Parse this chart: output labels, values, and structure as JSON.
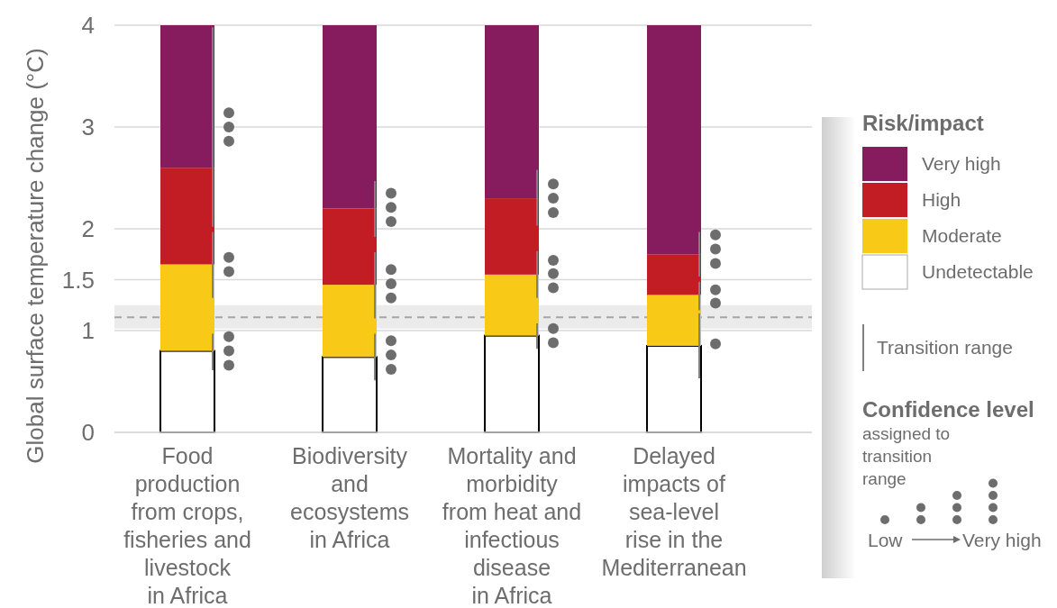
{
  "chart_data": {
    "type": "bar",
    "stacked": true,
    "ylabel": "Global surface temperature change (°C)",
    "legend_title": "Risk/impact",
    "legend": "right",
    "grid": "y",
    "categories": [
      "Food\nproduction\nfrom crops,\nfisheries and\nlivestock\nin Africa",
      "Biodiversity\nand\necosystems\nin Africa",
      "Mortality and\nmorbidity\nfrom heat and\ninfectious\ndisease\nin Africa",
      "Delayed\nimpacts of\nsea-level\nrise in the\nMediterranean"
    ],
    "ylim": [
      0,
      4
    ],
    "yticks": [
      0,
      1,
      1.5,
      2,
      3,
      4
    ],
    "series": [
      {
        "name": "Undetectable",
        "color": "#ffffff",
        "values": [
          0.8,
          0.74,
          0.95,
          0.85
        ],
        "errors": [
          [
            0.61,
            0.97
          ],
          [
            0.51,
            0.97
          ],
          [
            0.82,
            1.07
          ],
          [
            0.53,
            1.17
          ]
        ]
      },
      {
        "name": "Moderate",
        "color": "#f9c918",
        "values": [
          0.85,
          0.71,
          0.6,
          0.5
        ],
        "errors": [
          [
            1.32,
            1.97
          ],
          [
            1.12,
            1.77
          ],
          [
            1.32,
            1.78
          ],
          [
            1.2,
            1.48
          ]
        ]
      },
      {
        "name": "High",
        "color": "#c21d24",
        "values": [
          0.95,
          0.75,
          0.75,
          0.4
        ],
        "errors": [
          [
            2.02,
            3.98
          ],
          [
            1.92,
            2.47
          ],
          [
            2.03,
            2.58
          ],
          [
            1.53,
            1.97
          ]
        ]
      },
      {
        "name": "Very high",
        "color": "#861b5d",
        "values": [
          1.4,
          1.8,
          1.7,
          2.25
        ]
      },
      {
        "type": "scatter",
        "color": "#6d6d6d",
        "x": [
          "Food\nproduction\nfrom crops,\nfisheries and\nlivestock\nin Africa",
          "Food\nproduction\nfrom crops,\nfisheries and\nlivestock\nin Africa",
          "Food\nproduction\nfrom crops,\nfisheries and\nlivestock\nin Africa",
          "Food\nproduction\nfrom crops,\nfisheries and\nlivestock\nin Africa",
          "Food\nproduction\nfrom crops,\nfisheries and\nlivestock\nin Africa",
          "Food\nproduction\nfrom crops,\nfisheries and\nlivestock\nin Africa",
          "Food\nproduction\nfrom crops,\nfisheries and\nlivestock\nin Africa",
          "Food\nproduction\nfrom crops,\nfisheries and\nlivestock\nin Africa",
          "Biodiversity\nand\necosystems\nin Africa",
          "Biodiversity\nand\necosystems\nin Africa",
          "Biodiversity\nand\necosystems\nin Africa",
          "Biodiversity\nand\necosystems\nin Africa",
          "Biodiversity\nand\necosystems\nin Africa",
          "Biodiversity\nand\necosystems\nin Africa",
          "Biodiversity\nand\necosystems\nin Africa",
          "Biodiversity\nand\necosystems\nin Africa",
          "Biodiversity\nand\necosystems\nin Africa",
          "Mortality and\nmorbidity\nfrom heat and\ninfectious\ndisease\nin Africa",
          "Mortality and\nmorbidity\nfrom heat and\ninfectious\ndisease\nin Africa",
          "Mortality and\nmorbidity\nfrom heat and\ninfectious\ndisease\nin Africa",
          "Mortality and\nmorbidity\nfrom heat and\ninfectious\ndisease\nin Africa",
          "Mortality and\nmorbidity\nfrom heat and\ninfectious\ndisease\nin Africa",
          "Mortality and\nmorbidity\nfrom heat and\ninfectious\ndisease\nin Africa",
          "Mortality and\nmorbidity\nfrom heat and\ninfectious\ndisease\nin Africa",
          "Mortality and\nmorbidity\nfrom heat and\ninfectious\ndisease\nin Africa",
          "Delayed\nimpacts of\nsea-level\nrise in the\nMediterranean",
          "Delayed\nimpacts of\nsea-level\nrise in the\nMediterranean",
          "Delayed\nimpacts of\nsea-level\nrise in the\nMediterranean",
          "Delayed\nimpacts of\nsea-level\nrise in the\nMediterranean",
          "Delayed\nimpacts of\nsea-level\nrise in the\nMediterranean",
          "Delayed\nimpacts of\nsea-level\nrise in the\nMediterranean"
        ],
        "values": [
          3.14,
          3.0,
          2.86,
          1.72,
          1.58,
          0.94,
          0.8,
          0.66,
          2.35,
          2.21,
          2.07,
          1.6,
          1.46,
          1.32,
          0.9,
          0.76,
          0.62,
          2.44,
          2.3,
          2.16,
          1.69,
          1.56,
          1.42,
          1.02,
          0.88,
          1.94,
          1.8,
          1.66,
          1.4,
          1.27,
          0.87
        ]
      }
    ],
    "ref_lines": [
      {
        "axis": "y",
        "value": 1.13,
        "color": "#a6a6a6",
        "line_style": "dashed"
      }
    ],
    "bands": [
      {
        "axis": "y",
        "from": 1.02,
        "to": 1.25,
        "color": "#ebebeb"
      }
    ],
    "annotations": [
      "Transition range",
      "Confidence level",
      "assigned to\ntransition\nrange",
      "Low",
      "Very high"
    ]
  }
}
